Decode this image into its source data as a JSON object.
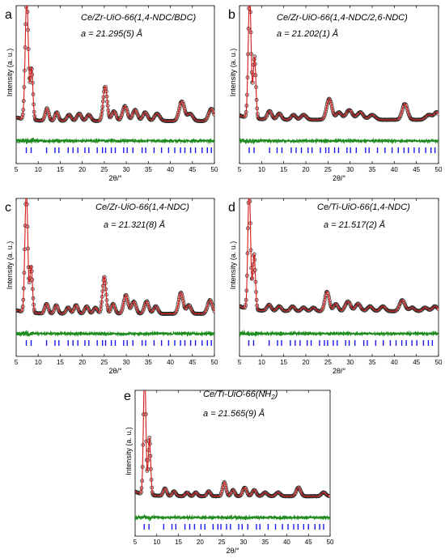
{
  "figure": {
    "panels": [
      {
        "letter": "a",
        "sample": "Ce/Zr-UiO-66(1,4-NDC/BDC)",
        "lattice": "a = 21.295(5) Å"
      },
      {
        "letter": "b",
        "sample": "Ce/Zr-UiO-66(1,4-NDC/2,6-NDC)",
        "lattice": "a = 21.202(1) Å"
      },
      {
        "letter": "c",
        "sample": "Ce/Zr-UiO-66(1,4-NDC)",
        "lattice": "a = 21.321(8) Å"
      },
      {
        "letter": "d",
        "sample": "Ce/Ti-UiO-66(1,4-NDC)",
        "lattice": "a = 21.517(2) Å"
      },
      {
        "letter": "e",
        "sample": "Ce/Ti-UiO-66(NH",
        "sample_sub": "2",
        "sample_tail": ")",
        "lattice": "a = 21.565(9) Å"
      }
    ]
  },
  "chart_data": [
    {
      "type": "line",
      "panel": "a",
      "title": "Ce/Zr-UiO-66(1,4-NDC/BDC)",
      "annotation": "a = 21.295(5) Å",
      "xlabel": "2θ/°",
      "ylabel": "Intensity (a. u.)",
      "xlim": [
        5,
        50
      ],
      "xticks": [
        5,
        10,
        15,
        20,
        25,
        30,
        35,
        40,
        45,
        50
      ],
      "yticks_shown": false,
      "peaks": [
        [
          7.4,
          1.0,
          0.35
        ],
        [
          8.5,
          0.42,
          0.3
        ],
        [
          12.0,
          0.1,
          0.4
        ],
        [
          14.2,
          0.07,
          0.4
        ],
        [
          17.0,
          0.05,
          0.5
        ],
        [
          19.3,
          0.06,
          0.5
        ],
        [
          21.5,
          0.05,
          0.5
        ],
        [
          25.2,
          0.28,
          0.45
        ],
        [
          27.2,
          0.08,
          0.5
        ],
        [
          29.7,
          0.12,
          0.55
        ],
        [
          32.0,
          0.09,
          0.55
        ],
        [
          34.3,
          0.07,
          0.55
        ],
        [
          37.0,
          0.06,
          0.6
        ],
        [
          42.6,
          0.16,
          0.6
        ],
        [
          44.5,
          0.06,
          0.6
        ],
        [
          49.3,
          0.1,
          0.6
        ]
      ],
      "baseline": 0.05,
      "difference_level": 0.02,
      "reflections": [
        7.3,
        8.4,
        11.9,
        13.8,
        14.7,
        16.8,
        17.9,
        19.0,
        20.6,
        21.5,
        23.4,
        24.6,
        25.3,
        26.6,
        27.5,
        29.4,
        30.2,
        31.5,
        33.6,
        34.4,
        36.3,
        38.0,
        39.6,
        41.0,
        42.3,
        43.3,
        44.6,
        45.7,
        47.2,
        48.4,
        49.3
      ],
      "series": [
        {
          "name": "observed",
          "color": "#e8928d"
        },
        {
          "name": "calculated",
          "color": "#d21a1a"
        },
        {
          "name": "difference",
          "color": "#1f8a1f"
        },
        {
          "name": "Bragg positions",
          "color": "#1a1aee"
        }
      ]
    },
    {
      "type": "line",
      "panel": "b",
      "title": "Ce/Zr-UiO-66(1,4-NDC/2,6-NDC)",
      "annotation": "a = 21.202(1) Å",
      "xlabel": "2θ/°",
      "ylabel": "Intensity (a. u.)",
      "xlim": [
        5,
        50
      ],
      "xticks": [
        5,
        10,
        15,
        20,
        25,
        30,
        35,
        40,
        45,
        50
      ],
      "yticks_shown": false,
      "peaks": [
        [
          7.3,
          1.0,
          0.32
        ],
        [
          8.4,
          0.5,
          0.3
        ],
        [
          11.8,
          0.07,
          0.5
        ],
        [
          14.0,
          0.05,
          0.5
        ],
        [
          17.2,
          0.04,
          0.5
        ],
        [
          19.5,
          0.04,
          0.6
        ],
        [
          25.3,
          0.17,
          0.6
        ],
        [
          27.5,
          0.06,
          0.6
        ],
        [
          29.8,
          0.08,
          0.7
        ],
        [
          32.3,
          0.06,
          0.7
        ],
        [
          35.0,
          0.04,
          0.7
        ],
        [
          42.4,
          0.13,
          0.6
        ],
        [
          47.8,
          0.04,
          0.7
        ],
        [
          49.6,
          0.06,
          0.6
        ]
      ],
      "baseline": 0.06,
      "difference_level": 0.02,
      "reflections": [
        7.2,
        8.3,
        11.8,
        13.5,
        14.6,
        16.7,
        17.8,
        19.0,
        20.5,
        21.4,
        23.3,
        24.5,
        25.2,
        26.5,
        27.4,
        29.3,
        30.1,
        31.4,
        33.5,
        34.3,
        36.2,
        37.9,
        39.5,
        40.9,
        42.2,
        43.2,
        44.5,
        45.6,
        47.1,
        48.3,
        49.2
      ],
      "series": [
        {
          "name": "observed",
          "color": "#e8928d"
        },
        {
          "name": "calculated",
          "color": "#d21a1a"
        },
        {
          "name": "difference",
          "color": "#1f8a1f"
        },
        {
          "name": "Bragg positions",
          "color": "#1a1aee"
        }
      ]
    },
    {
      "type": "line",
      "panel": "c",
      "title": "Ce/Zr-UiO-66(1,4-NDC)",
      "annotation": "a = 21.321(8) Å",
      "xlabel": "2θ/°",
      "ylabel": "Intensity (a. u.)",
      "xlim": [
        5,
        50
      ],
      "xticks": [
        5,
        10,
        15,
        20,
        25,
        30,
        35,
        40,
        45,
        50
      ],
      "yticks_shown": false,
      "peaks": [
        [
          7.3,
          1.0,
          0.32
        ],
        [
          8.4,
          0.38,
          0.3
        ],
        [
          11.9,
          0.08,
          0.4
        ],
        [
          14.1,
          0.07,
          0.4
        ],
        [
          16.8,
          0.05,
          0.45
        ],
        [
          18.6,
          0.07,
          0.45
        ],
        [
          21.0,
          0.06,
          0.45
        ],
        [
          23.0,
          0.05,
          0.45
        ],
        [
          25.0,
          0.3,
          0.4
        ],
        [
          27.0,
          0.08,
          0.45
        ],
        [
          29.9,
          0.15,
          0.5
        ],
        [
          31.7,
          0.1,
          0.5
        ],
        [
          34.6,
          0.1,
          0.5
        ],
        [
          36.7,
          0.06,
          0.5
        ],
        [
          42.4,
          0.17,
          0.5
        ],
        [
          44.2,
          0.07,
          0.5
        ],
        [
          49.0,
          0.11,
          0.55
        ]
      ],
      "baseline": 0.05,
      "difference_level": 0.02,
      "reflections": [
        7.3,
        8.4,
        11.9,
        13.8,
        14.7,
        16.8,
        17.9,
        19.0,
        20.6,
        21.5,
        23.4,
        24.6,
        25.3,
        26.6,
        27.5,
        29.4,
        30.2,
        31.5,
        33.6,
        34.4,
        36.3,
        38.0,
        39.6,
        41.0,
        42.3,
        43.3,
        44.6,
        45.7,
        47.2,
        48.4,
        49.3
      ],
      "series": [
        {
          "name": "observed",
          "color": "#e8928d"
        },
        {
          "name": "calculated",
          "color": "#d21a1a"
        },
        {
          "name": "difference",
          "color": "#1f8a1f"
        },
        {
          "name": "Bragg positions",
          "color": "#1a1aee"
        }
      ]
    },
    {
      "type": "line",
      "panel": "d",
      "title": "Ce/Ti-UiO-66(1,4-NDC)",
      "annotation": "a = 21.517(2) Å",
      "xlabel": "2θ/°",
      "ylabel": "Intensity (a. u.)",
      "xlim": [
        5,
        50
      ],
      "xticks": [
        5,
        10,
        15,
        20,
        25,
        30,
        35,
        40,
        45,
        50
      ],
      "yticks_shown": false,
      "peaks": [
        [
          7.2,
          1.0,
          0.3
        ],
        [
          8.3,
          0.45,
          0.3
        ],
        [
          11.7,
          0.05,
          0.5
        ],
        [
          14.0,
          0.04,
          0.5
        ],
        [
          17.0,
          0.04,
          0.5
        ],
        [
          19.5,
          0.03,
          0.5
        ],
        [
          21.7,
          0.03,
          0.5
        ],
        [
          24.8,
          0.16,
          0.5
        ],
        [
          26.8,
          0.06,
          0.5
        ],
        [
          29.5,
          0.08,
          0.6
        ],
        [
          31.8,
          0.06,
          0.6
        ],
        [
          34.5,
          0.04,
          0.6
        ],
        [
          37.4,
          0.04,
          0.6
        ],
        [
          41.8,
          0.09,
          0.6
        ],
        [
          44.0,
          0.03,
          0.6
        ],
        [
          47.0,
          0.03,
          0.6
        ],
        [
          49.2,
          0.04,
          0.6
        ]
      ],
      "baseline": 0.07,
      "difference_level": 0.02,
      "reflections": [
        7.1,
        8.2,
        11.7,
        13.6,
        14.5,
        16.5,
        17.6,
        18.7,
        20.3,
        21.2,
        23.1,
        24.2,
        24.9,
        26.2,
        27.1,
        29.0,
        29.8,
        31.1,
        33.1,
        33.9,
        35.8,
        37.5,
        39.1,
        40.4,
        41.7,
        42.7,
        44.0,
        45.1,
        46.6,
        47.7,
        48.6
      ],
      "series": [
        {
          "name": "observed",
          "color": "#e8928d"
        },
        {
          "name": "calculated",
          "color": "#d21a1a"
        },
        {
          "name": "difference",
          "color": "#1f8a1f"
        },
        {
          "name": "Bragg positions",
          "color": "#1a1aee"
        }
      ]
    },
    {
      "type": "line",
      "panel": "e",
      "title": "Ce/Ti-UiO-66(NH2)",
      "annotation": "a = 21.565(9) Å",
      "xlabel": "2θ/°",
      "ylabel": "Intensity (a. u.)",
      "xlim": [
        5,
        50
      ],
      "xticks": [
        5,
        10,
        15,
        20,
        25,
        30,
        35,
        40,
        45,
        50
      ],
      "yticks_shown": false,
      "peaks": [
        [
          7.2,
          1.0,
          0.28
        ],
        [
          8.3,
          0.45,
          0.28
        ],
        [
          11.9,
          0.06,
          0.4
        ],
        [
          14.0,
          0.04,
          0.4
        ],
        [
          17.0,
          0.03,
          0.4
        ],
        [
          19.0,
          0.03,
          0.4
        ],
        [
          22.0,
          0.04,
          0.4
        ],
        [
          25.6,
          0.11,
          0.4
        ],
        [
          27.6,
          0.05,
          0.4
        ],
        [
          30.3,
          0.07,
          0.45
        ],
        [
          32.5,
          0.05,
          0.45
        ],
        [
          35.0,
          0.03,
          0.5
        ],
        [
          38.0,
          0.03,
          0.5
        ],
        [
          42.7,
          0.07,
          0.5
        ],
        [
          48.5,
          0.03,
          0.5
        ]
      ],
      "baseline": 0.06,
      "difference_level": 0.02,
      "reflections": [
        7.1,
        8.2,
        11.6,
        13.5,
        14.4,
        16.5,
        17.6,
        18.7,
        20.2,
        21.1,
        23.0,
        24.1,
        24.8,
        26.1,
        27.0,
        28.9,
        29.7,
        31.0,
        33.0,
        33.8,
        35.7,
        37.4,
        39.0,
        40.3,
        41.6,
        42.6,
        43.9,
        45.0,
        46.5,
        47.6,
        48.5
      ],
      "series": [
        {
          "name": "observed",
          "color": "#e8928d"
        },
        {
          "name": "calculated",
          "color": "#d21a1a"
        },
        {
          "name": "difference",
          "color": "#1f8a1f"
        },
        {
          "name": "Bragg positions",
          "color": "#1a1aee"
        }
      ]
    }
  ]
}
